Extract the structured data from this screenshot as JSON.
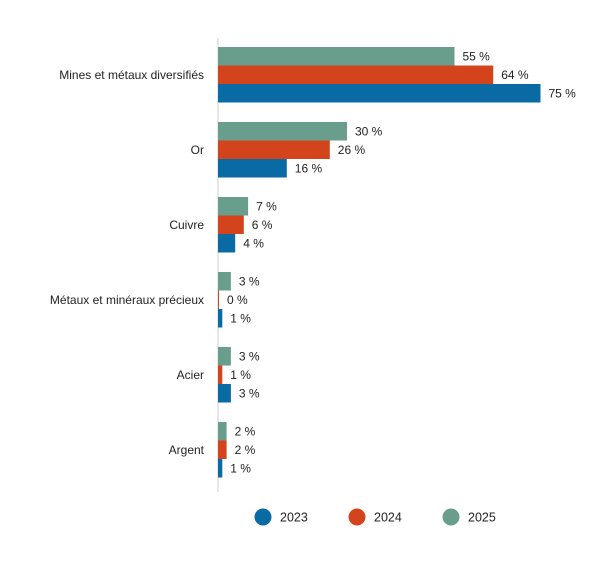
{
  "chart_data": {
    "type": "bar",
    "orientation": "horizontal",
    "title": "",
    "xlabel": "",
    "ylabel": "",
    "categories": [
      "Mines et métaux diversifiés",
      "Or",
      "Cuivre",
      "Métaux et minéraux précieux",
      "Acier",
      "Argent"
    ],
    "series": [
      {
        "name": "2025",
        "color": "#6a9e8c",
        "values": [
          55,
          30,
          7,
          3,
          3,
          2
        ],
        "labels": [
          "55 %",
          "30 %",
          "7 %",
          "3 %",
          "3 %",
          "2 %"
        ]
      },
      {
        "name": "2024",
        "color": "#d3441c",
        "values": [
          64,
          26,
          6,
          0,
          1,
          2
        ],
        "labels": [
          "64 %",
          "26 %",
          "6 %",
          "0 %",
          "1 %",
          "2 %"
        ]
      },
      {
        "name": "2023",
        "color": "#0a6aa3",
        "values": [
          75,
          16,
          4,
          1,
          3,
          1
        ],
        "labels": [
          "75 %",
          "16 %",
          "4 %",
          "1 %",
          "3 %",
          "1 %"
        ]
      }
    ],
    "legend": {
      "placement": "bottom",
      "items": [
        {
          "name": "2023",
          "color": "#0a6aa3"
        },
        {
          "name": "2024",
          "color": "#d3441c"
        },
        {
          "name": "2025",
          "color": "#6a9e8c"
        }
      ]
    },
    "xlim": [
      0,
      100
    ],
    "grid": false,
    "axis_color": "#cfcfcf"
  }
}
